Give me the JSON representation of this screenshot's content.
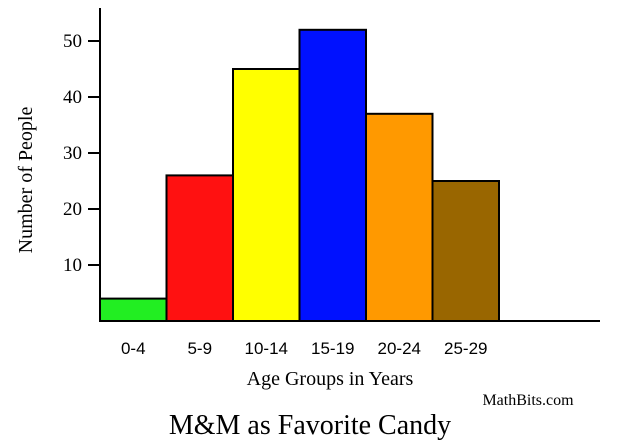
{
  "chart_data": {
    "type": "bar",
    "title": "M&M as Favorite Candy",
    "xlabel": "Age Groups in Years",
    "ylabel": "Number of People",
    "categories": [
      "0-4",
      "5-9",
      "10-14",
      "15-19",
      "20-24",
      "25-29"
    ],
    "values": [
      4,
      26,
      45,
      52,
      37,
      25
    ],
    "colors": [
      "#22ee22",
      "#ff1111",
      "#ffff00",
      "#0011ff",
      "#ff9900",
      "#996600"
    ],
    "yticks": [
      10,
      20,
      30,
      40,
      50
    ],
    "ylim": [
      0,
      60
    ],
    "grid": false,
    "legend": "none",
    "source": "MathBits.com"
  }
}
